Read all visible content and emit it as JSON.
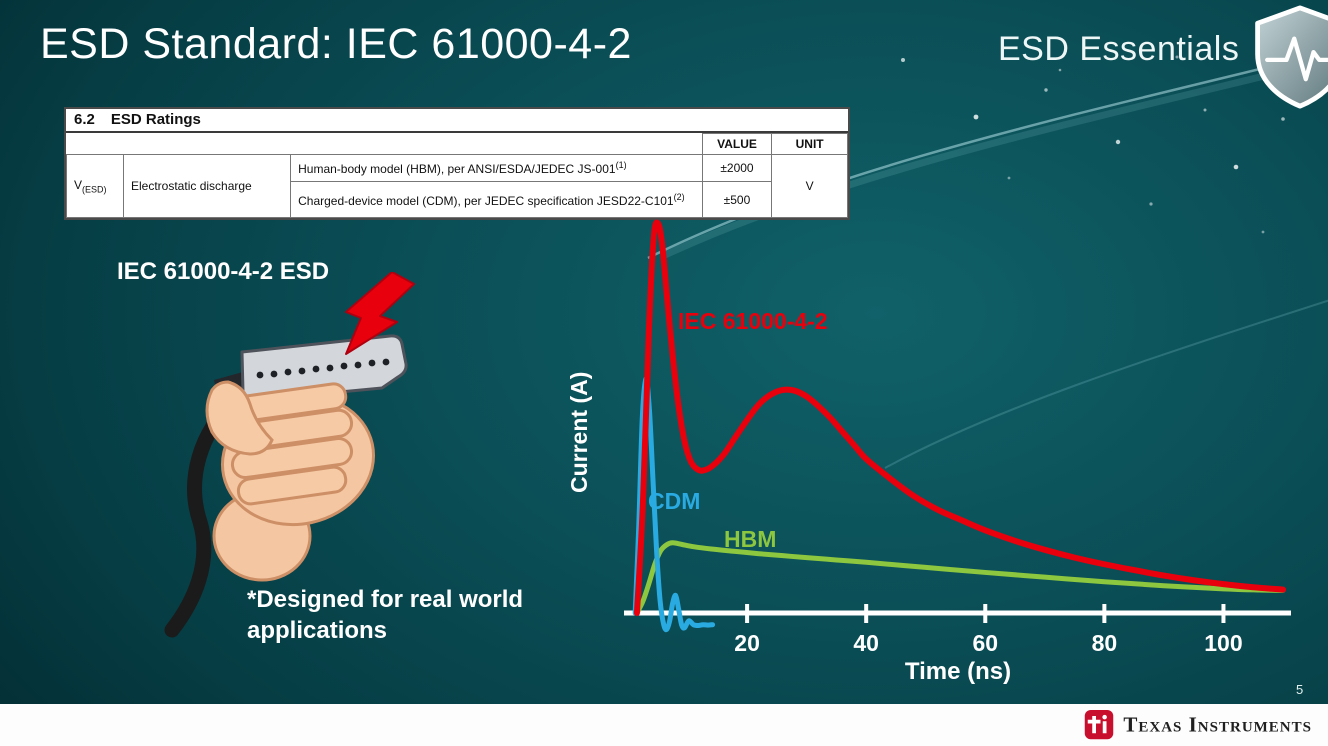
{
  "slide": {
    "title": "ESD Standard: IEC 61000-4-2",
    "series_brand": "ESD Essentials",
    "page_number": "5"
  },
  "ratings_table": {
    "caption_num": "6.2",
    "caption": "ESD Ratings",
    "col_value": "VALUE",
    "col_unit": "UNIT",
    "param_base": "V",
    "param_sub": "(ESD)",
    "param_desc": "Electrostatic discharge",
    "rows": [
      {
        "model": "Human-body model (HBM), per ANSI/ESDA/JEDEC JS-001",
        "sup": "(1)",
        "value": "±2000"
      },
      {
        "model": "Charged-device model (CDM), per JEDEC specification JESD22-C101",
        "sup": "(2)",
        "value": "±500"
      }
    ],
    "unit": "V"
  },
  "illustration": {
    "label": "IEC 61000-4-2 ESD",
    "note": "*Designed for real world applications"
  },
  "chart_data": {
    "type": "line",
    "title": "",
    "xlabel": "Time (ns)",
    "ylabel": "Current (A)",
    "xlim": [
      0,
      110
    ],
    "ylim": [
      -0.5,
      10.5
    ],
    "x_ticks": [
      20,
      40,
      60,
      80,
      100
    ],
    "grid": false,
    "legend_position": "inline-labels",
    "series": [
      {
        "name": "IEC 61000-4-2",
        "color": "#e8000d",
        "x": [
          1.5,
          2.5,
          3.5,
          4.3,
          5,
          5.7,
          6.5,
          7.5,
          8.5,
          9.5,
          10.5,
          11.5,
          12.5,
          14,
          16,
          18,
          20,
          22,
          24,
          26,
          28,
          30,
          32,
          34,
          36,
          38,
          40,
          44,
          48,
          52,
          56,
          60,
          65,
          70,
          75,
          80,
          85,
          90,
          95,
          100,
          105,
          110
        ],
        "y": [
          0,
          2.8,
          7.2,
          9.6,
          10,
          9.5,
          8.2,
          6.6,
          5.3,
          4.4,
          3.9,
          3.7,
          3.65,
          3.75,
          4.05,
          4.5,
          4.95,
          5.35,
          5.6,
          5.72,
          5.7,
          5.55,
          5.3,
          5.0,
          4.65,
          4.3,
          3.95,
          3.45,
          3.0,
          2.65,
          2.38,
          2.12,
          1.85,
          1.62,
          1.42,
          1.25,
          1.1,
          0.96,
          0.84,
          0.74,
          0.66,
          0.6
        ]
      },
      {
        "name": "CDM",
        "color": "#29abe2",
        "x": [
          1.2,
          1.8,
          2.4,
          3.0,
          3.6,
          4.2,
          4.8,
          5.4,
          6.0,
          6.5,
          7.0,
          7.5,
          8.0,
          8.5,
          9.0,
          9.5,
          10.2,
          11.0,
          11.8,
          12.6,
          13.4,
          14.2
        ],
        "y": [
          0,
          2.2,
          5.0,
          6.0,
          5.2,
          3.4,
          1.6,
          0.3,
          -0.3,
          -0.42,
          -0.2,
          0.25,
          0.45,
          0.1,
          -0.3,
          -0.38,
          -0.2,
          -0.3,
          -0.32,
          -0.3,
          -0.31,
          -0.3
        ]
      },
      {
        "name": "HBM",
        "color": "#8dc63f",
        "x": [
          1.5,
          2.5,
          3.5,
          4.5,
          5.5,
          6.5,
          7.5,
          9,
          11,
          14,
          18,
          22,
          26,
          30,
          35,
          40,
          50,
          60,
          70,
          80,
          90,
          100,
          106,
          110
        ],
        "y": [
          0,
          0.3,
          0.75,
          1.25,
          1.6,
          1.75,
          1.8,
          1.76,
          1.7,
          1.64,
          1.58,
          1.52,
          1.47,
          1.42,
          1.36,
          1.3,
          1.17,
          1.04,
          0.92,
          0.8,
          0.7,
          0.62,
          0.59,
          0.58
        ]
      }
    ]
  },
  "footer": {
    "brand": "Texas Instruments"
  },
  "colors": {
    "iec_red": "#e8000d",
    "cdm_blue": "#29abe2",
    "hbm_green": "#8dc63f",
    "ti_red": "#c8102e",
    "background_teal": "#0b4f57"
  }
}
